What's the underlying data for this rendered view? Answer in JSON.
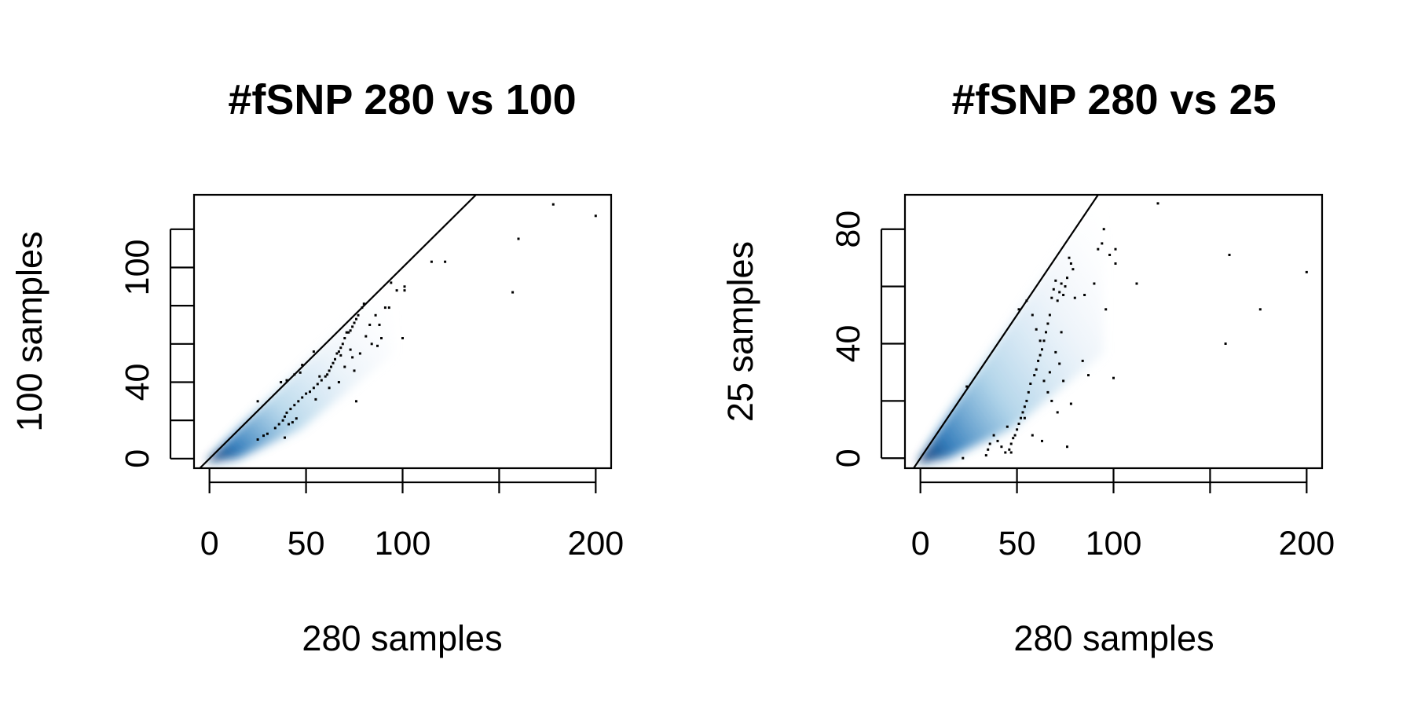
{
  "chart_data": [
    {
      "type": "scatter",
      "title": "#fSNP 280 vs 100",
      "xlabel": "280 samples",
      "ylabel": "100 samples",
      "xlim": [
        -8,
        208
      ],
      "ylim": [
        -5,
        138
      ],
      "xticks": [
        0,
        50,
        100,
        150,
        200
      ],
      "xtick_labels": [
        "0",
        "50",
        "100",
        "",
        "200"
      ],
      "yticks": [
        0,
        20,
        40,
        60,
        80,
        100,
        120
      ],
      "ytick_labels": [
        "0",
        "",
        "40",
        "",
        "",
        "100",
        ""
      ],
      "reference_line": {
        "slope": 1,
        "intercept": 0
      },
      "density": {
        "max_x": 95,
        "slope": 0.82,
        "color": "#08519c"
      },
      "colors": {
        "density": "#2171b5",
        "points": "#000000",
        "line": "#000000"
      },
      "points": [
        [
          200,
          127
        ],
        [
          178,
          133
        ],
        [
          160,
          115
        ],
        [
          157,
          87
        ],
        [
          122,
          103
        ],
        [
          115,
          103
        ],
        [
          101,
          90
        ],
        [
          101,
          88
        ],
        [
          97,
          88
        ],
        [
          94,
          92
        ],
        [
          93,
          79
        ],
        [
          91,
          79
        ],
        [
          100,
          63
        ],
        [
          89,
          63
        ],
        [
          86,
          75
        ],
        [
          80,
          81
        ],
        [
          79,
          79
        ],
        [
          77,
          75
        ],
        [
          76,
          73
        ],
        [
          75,
          71
        ],
        [
          74,
          69
        ],
        [
          73,
          67
        ],
        [
          72,
          66
        ],
        [
          71,
          66
        ],
        [
          70,
          63
        ],
        [
          69,
          60
        ],
        [
          68,
          58
        ],
        [
          67,
          56
        ],
        [
          66,
          55
        ],
        [
          65,
          52
        ],
        [
          64,
          50
        ],
        [
          63,
          48
        ],
        [
          62,
          46
        ],
        [
          61,
          44
        ],
        [
          60,
          43
        ],
        [
          58,
          41
        ],
        [
          56,
          39
        ],
        [
          54,
          37
        ],
        [
          52,
          35
        ],
        [
          50,
          34
        ],
        [
          48,
          32
        ],
        [
          46,
          30
        ],
        [
          44,
          28
        ],
        [
          42,
          26
        ],
        [
          40,
          24
        ],
        [
          45,
          21
        ],
        [
          43,
          19
        ],
        [
          41,
          18
        ],
        [
          39,
          22
        ],
        [
          38,
          20
        ],
        [
          36,
          18
        ],
        [
          34,
          16
        ],
        [
          30,
          13
        ],
        [
          28,
          12
        ],
        [
          25,
          10
        ],
        [
          39,
          11
        ],
        [
          55,
          31
        ],
        [
          74,
          53
        ],
        [
          75,
          46
        ],
        [
          81,
          64
        ],
        [
          84,
          60
        ],
        [
          68,
          54
        ],
        [
          78,
          55
        ],
        [
          87,
          59
        ],
        [
          48,
          49
        ],
        [
          44,
          44
        ],
        [
          40,
          41
        ],
        [
          25,
          30
        ],
        [
          37,
          40
        ],
        [
          47,
          45
        ],
        [
          57,
          43
        ],
        [
          62,
          37
        ],
        [
          67,
          40
        ],
        [
          70,
          48
        ],
        [
          73,
          57
        ],
        [
          83,
          70
        ],
        [
          88,
          70
        ],
        [
          76,
          30
        ],
        [
          54,
          56
        ]
      ]
    },
    {
      "type": "scatter",
      "title": "#fSNP 280 vs 25",
      "xlabel": "280 samples",
      "ylabel": "25 samples",
      "xlim": [
        -8,
        208
      ],
      "ylim": [
        -3.5,
        92
      ],
      "xticks": [
        0,
        50,
        100,
        150,
        200
      ],
      "xtick_labels": [
        "0",
        "50",
        "100",
        "",
        "200"
      ],
      "yticks": [
        0,
        20,
        40,
        60,
        80
      ],
      "ytick_labels": [
        "0",
        "",
        "40",
        "",
        "80"
      ],
      "reference_line": {
        "slope": 1,
        "intercept": 0
      },
      "density": {
        "max_x": 95,
        "slope": 0.55,
        "color": "#08519c"
      },
      "colors": {
        "density": "#2171b5",
        "points": "#000000",
        "line": "#000000"
      },
      "points": [
        [
          123,
          89
        ],
        [
          200,
          65
        ],
        [
          160,
          71
        ],
        [
          176,
          52
        ],
        [
          158,
          40
        ],
        [
          112,
          61
        ],
        [
          101,
          73
        ],
        [
          101,
          68
        ],
        [
          98,
          71
        ],
        [
          95,
          80
        ],
        [
          94,
          75
        ],
        [
          92,
          73
        ],
        [
          100,
          28
        ],
        [
          96,
          52
        ],
        [
          87,
          29
        ],
        [
          84,
          34
        ],
        [
          79,
          66
        ],
        [
          78,
          68
        ],
        [
          77,
          70
        ],
        [
          76,
          63
        ],
        [
          75,
          60
        ],
        [
          74,
          57
        ],
        [
          73,
          61
        ],
        [
          72,
          58
        ],
        [
          71,
          55
        ],
        [
          70,
          62
        ],
        [
          69,
          59
        ],
        [
          68,
          56
        ],
        [
          67,
          50
        ],
        [
          66,
          47
        ],
        [
          65,
          44
        ],
        [
          64,
          41
        ],
        [
          63,
          38
        ],
        [
          62,
          36
        ],
        [
          61,
          34
        ],
        [
          60,
          31
        ],
        [
          59,
          29
        ],
        [
          57,
          26
        ],
        [
          56,
          23
        ],
        [
          55,
          20
        ],
        [
          54,
          18
        ],
        [
          53,
          16
        ],
        [
          52,
          14
        ],
        [
          51,
          12
        ],
        [
          50,
          10
        ],
        [
          49,
          8
        ],
        [
          48,
          7
        ],
        [
          47,
          5
        ],
        [
          46,
          3
        ],
        [
          44,
          2
        ],
        [
          42,
          4
        ],
        [
          40,
          6
        ],
        [
          38,
          8
        ],
        [
          36,
          5
        ],
        [
          35,
          3
        ],
        [
          34,
          1
        ],
        [
          22,
          0
        ],
        [
          24,
          25
        ],
        [
          51,
          52
        ],
        [
          55,
          55
        ],
        [
          58,
          50
        ],
        [
          60,
          45
        ],
        [
          62,
          41
        ],
        [
          64,
          27
        ],
        [
          66,
          23
        ],
        [
          68,
          20
        ],
        [
          70,
          37
        ],
        [
          72,
          33
        ],
        [
          74,
          27
        ],
        [
          76,
          4
        ],
        [
          78,
          19
        ],
        [
          80,
          56
        ],
        [
          85,
          57
        ],
        [
          90,
          61
        ],
        [
          58,
          8
        ],
        [
          45,
          11
        ],
        [
          47,
          2
        ],
        [
          54,
          14
        ],
        [
          63,
          6
        ],
        [
          71,
          16
        ],
        [
          73,
          44
        ],
        [
          67,
          30
        ]
      ]
    }
  ]
}
